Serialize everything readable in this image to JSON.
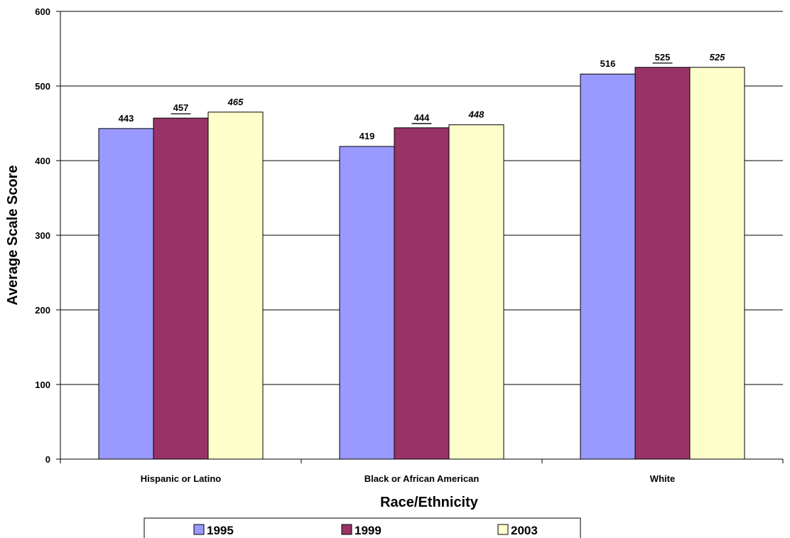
{
  "chart_data": {
    "type": "bar",
    "title": "",
    "xlabel": "Race/Ethnicity",
    "ylabel": "Average Scale Score",
    "ylim": [
      0,
      600
    ],
    "yticks": [
      0,
      100,
      200,
      300,
      400,
      500,
      600
    ],
    "grid": true,
    "legend_position": "bottom",
    "categories": [
      "Hispanic or Latino",
      "Black or African American",
      "White"
    ],
    "series": [
      {
        "name": "1995",
        "color": "#9999ff",
        "label_style": "plain",
        "values": [
          443,
          419,
          516
        ]
      },
      {
        "name": "1999",
        "color": "#993366",
        "label_style": "underline",
        "values": [
          457,
          444,
          525
        ]
      },
      {
        "name": "2003",
        "color": "#ffffcc",
        "label_style": "italic",
        "values": [
          465,
          448,
          525
        ]
      }
    ]
  }
}
